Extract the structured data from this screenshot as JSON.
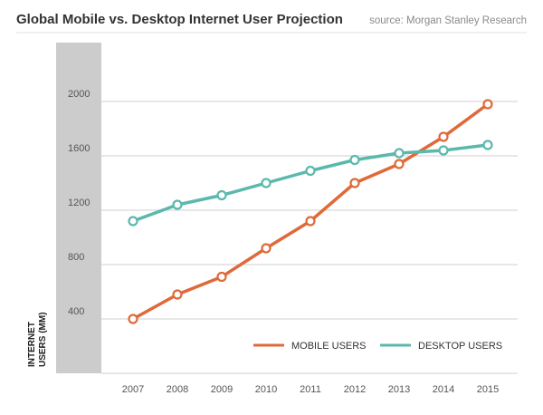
{
  "chart_data": {
    "type": "line",
    "title": "Global Mobile vs. Desktop Internet User Projection",
    "source": "source: Morgan Stanley Research",
    "ylabel_line1": "INTERNET",
    "ylabel_line2": "USERS (MM)",
    "xlabel": "",
    "categories": [
      "2007",
      "2008",
      "2009",
      "2010",
      "2011",
      "2012",
      "2013",
      "2014",
      "2015"
    ],
    "yticks": [
      400,
      800,
      1200,
      1600,
      2000
    ],
    "ylim": [
      0,
      2400
    ],
    "grid": true,
    "legend_position": "bottom-right",
    "series": [
      {
        "name": "MOBILE USERS",
        "color": "#e0693a",
        "values": [
          400,
          580,
          710,
          920,
          1120,
          1400,
          1540,
          1740,
          1980
        ]
      },
      {
        "name": "DESKTOP USERS",
        "color": "#5bb8ad",
        "values": [
          1120,
          1240,
          1310,
          1400,
          1490,
          1570,
          1620,
          1640,
          1680
        ]
      }
    ]
  }
}
